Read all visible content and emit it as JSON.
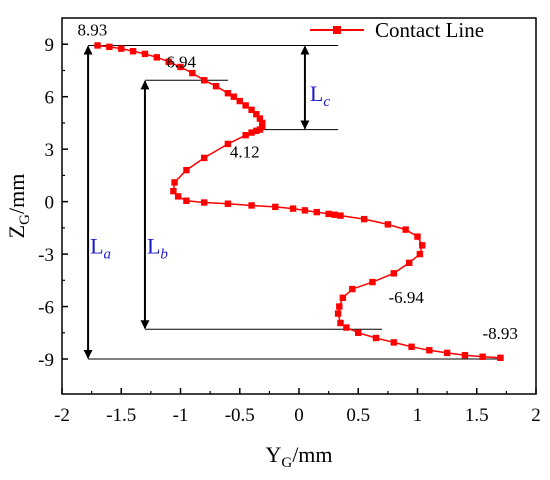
{
  "chart_data": {
    "type": "scatter",
    "xlabel": "Y",
    "xlabel_sub": "G",
    "xlabel_unit": "/mm",
    "ylabel": "Z",
    "ylabel_sub": "G",
    "ylabel_unit": "/mm",
    "xlim": [
      -2,
      2
    ],
    "ylim": [
      -11,
      10.5
    ],
    "xticks": [
      -2,
      -1.5,
      -1,
      -0.5,
      0,
      0.5,
      1,
      1.5,
      2
    ],
    "xtick_labels": [
      "-2",
      "-1.5",
      "-1",
      "-0.5",
      "0",
      "0.5",
      "1",
      "1.5",
      "2"
    ],
    "yticks": [
      -9,
      -6,
      -3,
      0,
      3,
      6,
      9
    ],
    "ytick_labels": [
      "-9",
      "-6",
      "-3",
      "0",
      "3",
      "6",
      "9"
    ],
    "grid": false,
    "legend_position": "top-right",
    "series": [
      {
        "name": "Contact Line",
        "color": "#ff0000",
        "marker": "square",
        "x": [
          -1.7,
          -1.6,
          -1.5,
          -1.4,
          -1.3,
          -1.2,
          -1.1,
          -1.0,
          -0.9,
          -0.8,
          -0.7,
          -0.6,
          -0.55,
          -0.5,
          -0.45,
          -0.4,
          -0.36,
          -0.33,
          -0.31,
          -0.31,
          -0.33,
          -0.36,
          -0.4,
          -0.45,
          -0.6,
          -0.8,
          -0.95,
          -1.05,
          -1.06,
          -1.02,
          -0.95,
          -0.8,
          -0.6,
          -0.4,
          -0.2,
          -0.05,
          0.05,
          0.15,
          0.25,
          0.3,
          0.35,
          0.55,
          0.75,
          0.9,
          1.0,
          1.04,
          1.02,
          0.93,
          0.8,
          0.62,
          0.45,
          0.37,
          0.34,
          0.33,
          0.35,
          0.4,
          0.5,
          0.65,
          0.8,
          0.95,
          1.1,
          1.25,
          1.4,
          1.55,
          1.7
        ],
        "y": [
          8.93,
          8.85,
          8.75,
          8.6,
          8.45,
          8.25,
          8.0,
          7.7,
          7.35,
          6.94,
          6.6,
          6.2,
          6.0,
          5.75,
          5.5,
          5.25,
          5.0,
          4.75,
          4.5,
          4.3,
          4.12,
          4.05,
          3.95,
          3.8,
          3.3,
          2.5,
          1.8,
          1.1,
          0.6,
          0.3,
          0.05,
          -0.05,
          -0.12,
          -0.22,
          -0.3,
          -0.4,
          -0.5,
          -0.6,
          -0.7,
          -0.75,
          -0.8,
          -1.0,
          -1.3,
          -1.6,
          -2.0,
          -2.5,
          -3.0,
          -3.5,
          -4.1,
          -4.6,
          -5.0,
          -5.5,
          -6.0,
          -6.4,
          -6.94,
          -7.2,
          -7.5,
          -7.8,
          -8.05,
          -8.3,
          -8.5,
          -8.65,
          -8.78,
          -8.87,
          -8.93
        ]
      }
    ],
    "point_labels": [
      {
        "text": "8.93",
        "x": -1.7,
        "y": 8.93
      },
      {
        "text": "6.94",
        "x": -0.8,
        "y": 6.94
      },
      {
        "text": "4.12",
        "x": -0.33,
        "y": 4.12
      },
      {
        "text": "-6.94",
        "x": 0.35,
        "y": -6.94
      },
      {
        "text": "-8.93",
        "x": 1.7,
        "y": -8.93
      }
    ],
    "reference_lines": [
      {
        "y": 8.93,
        "x_from": -1.78,
        "x_to": 0.33
      },
      {
        "y": 6.94,
        "x_from": -1.3,
        "x_to": -0.6
      },
      {
        "y": 4.12,
        "x_from": -0.33,
        "x_to": 0.33
      },
      {
        "y": -7.3,
        "x_from": -1.3,
        "x_to": 0.7
      },
      {
        "y": -9.0,
        "x_from": -1.78,
        "x_to": 1.7
      }
    ],
    "dimensions": [
      {
        "label": "L",
        "sub": "a",
        "x": -1.78,
        "y_from": 8.93,
        "y_to": -9.0
      },
      {
        "label": "L",
        "sub": "b",
        "x": -1.3,
        "y_from": 6.94,
        "y_to": -7.3
      },
      {
        "label": "L",
        "sub": "c",
        "x": 0.05,
        "y_from": 8.93,
        "y_to": 4.12
      }
    ]
  }
}
